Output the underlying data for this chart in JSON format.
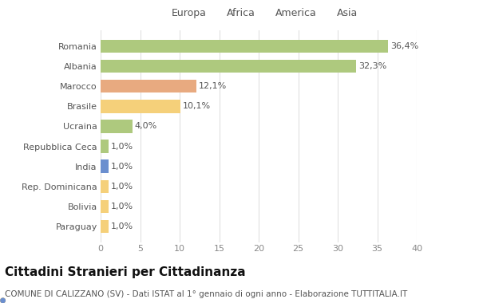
{
  "categories": [
    "Romania",
    "Albania",
    "Marocco",
    "Brasile",
    "Ucraina",
    "Repubblica Ceca",
    "India",
    "Rep. Dominicana",
    "Bolivia",
    "Paraguay"
  ],
  "values": [
    36.4,
    32.3,
    12.1,
    10.1,
    4.0,
    1.0,
    1.0,
    1.0,
    1.0,
    1.0
  ],
  "labels": [
    "36,4%",
    "32,3%",
    "12,1%",
    "10,1%",
    "4,0%",
    "1,0%",
    "1,0%",
    "1,0%",
    "1,0%",
    "1,0%"
  ],
  "colors": [
    "#aec97e",
    "#aec97e",
    "#e8aa80",
    "#f5d07a",
    "#aec97e",
    "#aec97e",
    "#6b8fcf",
    "#f5d07a",
    "#f5d07a",
    "#f5d07a"
  ],
  "legend": [
    {
      "label": "Europa",
      "color": "#aec97e"
    },
    {
      "label": "Africa",
      "color": "#e8aa80"
    },
    {
      "label": "America",
      "color": "#f5d07a"
    },
    {
      "label": "Asia",
      "color": "#6b8fcf"
    }
  ],
  "xlim": [
    0,
    40
  ],
  "xticks": [
    0,
    5,
    10,
    15,
    20,
    25,
    30,
    35,
    40
  ],
  "title": "Cittadini Stranieri per Cittadinanza",
  "subtitle": "COMUNE DI CALIZZANO (SV) - Dati ISTAT al 1° gennaio di ogni anno - Elaborazione TUTTITALIA.IT",
  "background_color": "#ffffff",
  "grid_color": "#e0e0e0",
  "bar_height": 0.65,
  "title_fontsize": 11,
  "subtitle_fontsize": 7.5,
  "label_fontsize": 8,
  "tick_fontsize": 8,
  "legend_fontsize": 9,
  "ytick_fontsize": 8
}
